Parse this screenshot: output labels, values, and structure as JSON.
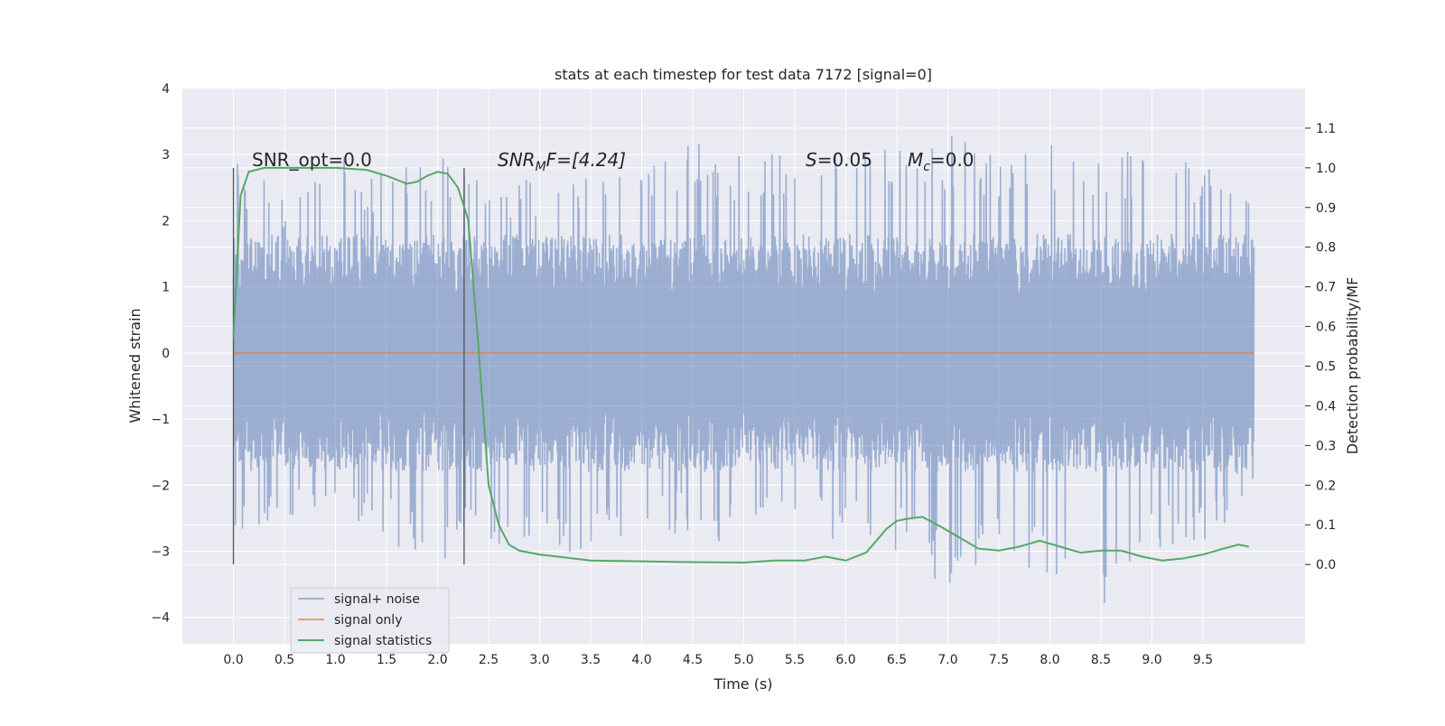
{
  "chart_data": {
    "type": "line",
    "title": "stats at each timestep for test data 7172 [signal=0]",
    "xlabel": "Time (s)",
    "ylabel": "Whitened strain",
    "ylabel_right": "Detection probability/MF",
    "xlim": [
      -0.5,
      10.5
    ],
    "ylim": [
      -4.4,
      4.0
    ],
    "ylim_right": [
      -0.2,
      1.2
    ],
    "xticks": [
      "0.0",
      "0.5",
      "1.0",
      "1.5",
      "2.0",
      "2.5",
      "3.0",
      "3.5",
      "4.0",
      "4.5",
      "5.0",
      "5.5",
      "6.0",
      "6.5",
      "7.0",
      "7.5",
      "8.0",
      "8.5",
      "9.0",
      "9.5"
    ],
    "yticks": [
      "4",
      "3",
      "2",
      "1",
      "0",
      "−1",
      "−2",
      "−3",
      "−4"
    ],
    "yticks_right": [
      "1.1",
      "1.0",
      "0.9",
      "0.8",
      "0.7",
      "0.6",
      "0.5",
      "0.4",
      "0.3",
      "0.2",
      "0.1",
      "0.0"
    ],
    "grid": true,
    "legend_position": "lower-left",
    "colors": {
      "noise": "#4c72b0",
      "signal": "#dd8452",
      "stats": "#55a868",
      "background": "#eaeaf2",
      "grid": "#ffffff",
      "marker": "#555555"
    },
    "annotations": {
      "snr_opt": "SNR_opt=0.0",
      "snr_mf_base": "SNR",
      "snr_mf_sub": "M",
      "snr_mf_rest": "F=[4.24]",
      "s_base": "S",
      "s_rest": "=0.05",
      "mc_base": "M",
      "mc_sub": "c",
      "mc_rest": "=0.0"
    },
    "markers": [
      0.0,
      2.26
    ],
    "series": [
      {
        "name": "signal+ noise",
        "x_range": [
          0.0,
          10.0
        ],
        "envelope": {
          "x": [
            0.0,
            0.5,
            1.0,
            1.5,
            2.0,
            2.5,
            3.0,
            3.5,
            4.0,
            4.5,
            5.0,
            5.5,
            6.0,
            6.5,
            7.0,
            7.5,
            8.0,
            8.5,
            9.0,
            9.5,
            10.0
          ],
          "max": [
            2.9,
            2.5,
            3.1,
            2.7,
            3.1,
            2.8,
            2.6,
            2.9,
            2.8,
            3.3,
            3.0,
            3.2,
            3.2,
            3.1,
            3.3,
            3.0,
            3.2,
            3.1,
            3.0,
            2.9,
            2.3
          ],
          "min": [
            -3.2,
            -2.6,
            -2.7,
            -2.9,
            -3.3,
            -2.9,
            -3.0,
            -3.3,
            -2.8,
            -2.7,
            -3.0,
            -2.8,
            -2.9,
            -3.0,
            -3.6,
            -3.1,
            -3.5,
            -4.0,
            -3.0,
            -3.1,
            -1.9
          ]
        }
      },
      {
        "name": "signal only",
        "x": [
          0.0,
          10.0
        ],
        "y": [
          0.0,
          0.0
        ]
      },
      {
        "name": "signal statistics",
        "x": [
          0.0,
          0.07,
          0.15,
          0.3,
          0.6,
          1.0,
          1.3,
          1.5,
          1.6,
          1.7,
          1.8,
          1.9,
          2.0,
          2.1,
          2.2,
          2.3,
          2.4,
          2.5,
          2.6,
          2.7,
          2.8,
          3.0,
          3.5,
          4.0,
          4.5,
          5.0,
          5.3,
          5.6,
          5.8,
          6.0,
          6.2,
          6.3,
          6.4,
          6.5,
          6.6,
          6.75,
          6.9,
          7.1,
          7.3,
          7.5,
          7.7,
          7.9,
          8.1,
          8.3,
          8.5,
          8.7,
          8.9,
          9.1,
          9.3,
          9.5,
          9.7,
          9.85,
          9.95
        ],
        "y": [
          0.57,
          0.93,
          0.99,
          1.0,
          1.0,
          1.0,
          0.995,
          0.98,
          0.97,
          0.96,
          0.965,
          0.98,
          0.99,
          0.985,
          0.95,
          0.87,
          0.55,
          0.2,
          0.1,
          0.05,
          0.035,
          0.025,
          0.01,
          0.008,
          0.006,
          0.005,
          0.01,
          0.01,
          0.02,
          0.01,
          0.03,
          0.06,
          0.09,
          0.11,
          0.115,
          0.12,
          0.1,
          0.07,
          0.04,
          0.035,
          0.045,
          0.06,
          0.045,
          0.03,
          0.035,
          0.035,
          0.02,
          0.01,
          0.015,
          0.025,
          0.04,
          0.05,
          0.045
        ]
      }
    ]
  }
}
